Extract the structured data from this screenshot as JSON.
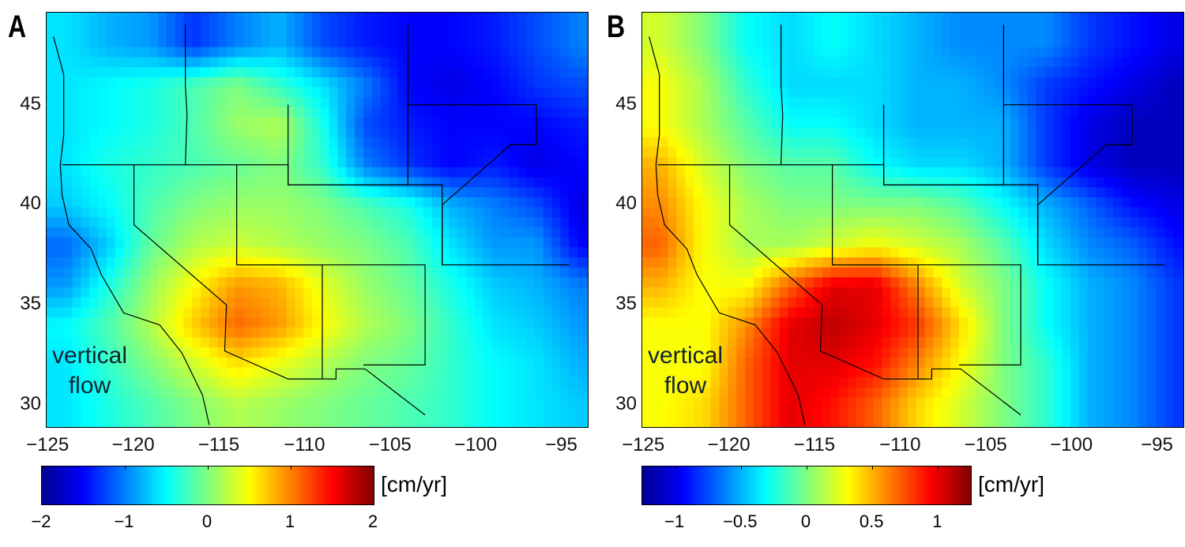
{
  "chart_data": [
    {
      "panel": "A",
      "type": "heatmap",
      "annotation": [
        "vertical",
        "flow"
      ],
      "xlim": [
        -125.1,
        -93.5
      ],
      "ylim": [
        28.9,
        49.6
      ],
      "xticks": [
        "−125",
        "−120",
        "−115",
        "−110",
        "−105",
        "−100",
        "−95"
      ],
      "xtick_values": [
        -125,
        -120,
        -115,
        -110,
        -105,
        -100,
        -95
      ],
      "yticks": [
        "45",
        "40",
        "35",
        "30"
      ],
      "ytick_values": [
        45,
        40,
        35,
        30
      ],
      "colormap": "jet",
      "color_range": [
        -2,
        2
      ],
      "colorbar_ticks": [
        "−2",
        "−1",
        "0",
        "1",
        "2"
      ],
      "colorbar_tick_values": [
        -2,
        -1,
        0,
        1,
        2
      ],
      "colorbar_label": "[cm/yr]",
      "grid_lon": [
        -124,
        -121.5,
        -119,
        -116.5,
        -114,
        -111.5,
        -109,
        -106.5,
        -104,
        -101.5,
        -99,
        -96.5,
        -94
      ],
      "grid_lat": [
        48,
        46,
        44,
        42,
        40,
        38,
        36,
        34,
        32,
        30
      ],
      "values": [
        [
          -0.6,
          -0.8,
          -0.9,
          -1.3,
          -1.0,
          -0.8,
          -1.2,
          -1.4,
          -1.5,
          -1.5,
          -1.4,
          -1.2,
          -1.0
        ],
        [
          -0.6,
          -0.5,
          -0.4,
          -0.2,
          0.0,
          -0.3,
          -0.6,
          -1.0,
          -1.5,
          -1.6,
          -1.5,
          -1.3,
          -1.2
        ],
        [
          -0.6,
          -0.5,
          -0.4,
          -0.2,
          0.1,
          0.2,
          -0.4,
          -1.2,
          -1.4,
          -1.5,
          -1.5,
          -1.5,
          -1.4
        ],
        [
          -0.6,
          -0.4,
          -0.3,
          -0.2,
          -0.1,
          0.0,
          -0.3,
          -1.0,
          -1.3,
          -1.5,
          -1.4,
          -1.6,
          -1.5
        ],
        [
          -0.7,
          -0.5,
          -0.2,
          0.0,
          0.1,
          0.1,
          0.0,
          -0.2,
          -0.4,
          -0.8,
          -1.0,
          -1.2,
          -1.6
        ],
        [
          -1.1,
          -0.7,
          -0.1,
          0.2,
          0.3,
          0.2,
          0.1,
          0.0,
          -0.2,
          -0.6,
          -0.9,
          -0.9,
          -1.5
        ],
        [
          -0.9,
          -0.4,
          0.1,
          0.5,
          0.9,
          0.8,
          0.4,
          0.1,
          -0.1,
          -0.4,
          -0.7,
          -0.8,
          -1.0
        ],
        [
          -0.5,
          -0.2,
          0.2,
          0.7,
          1.1,
          0.9,
          0.5,
          0.2,
          0.0,
          -0.3,
          -0.6,
          -0.7,
          -0.9
        ],
        [
          -0.6,
          -0.3,
          0.0,
          0.3,
          0.6,
          0.4,
          0.2,
          0.0,
          -0.1,
          -0.3,
          -0.5,
          -0.6,
          -0.8
        ],
        [
          -0.6,
          -0.4,
          -0.2,
          0.0,
          0.2,
          0.1,
          0.0,
          -0.1,
          -0.2,
          -0.3,
          -0.5,
          -0.6,
          -0.7
        ]
      ]
    },
    {
      "panel": "B",
      "type": "heatmap",
      "annotation": [
        "vertical",
        "flow"
      ],
      "xlim": [
        -125.1,
        -93.5
      ],
      "ylim": [
        28.9,
        49.6
      ],
      "xticks": [
        "−125",
        "−120",
        "−115",
        "−110",
        "−105",
        "−100",
        "−95"
      ],
      "xtick_values": [
        -125,
        -120,
        -115,
        -110,
        -105,
        -100,
        -95
      ],
      "yticks": [
        "45",
        "40",
        "35",
        "30"
      ],
      "ytick_values": [
        45,
        40,
        35,
        30
      ],
      "colormap": "jet",
      "color_range": [
        -1.25,
        1.25
      ],
      "colorbar_ticks": [
        "−1",
        "−0.5",
        "0",
        "0.5",
        "1"
      ],
      "colorbar_tick_values": [
        -1,
        -0.5,
        0,
        0.5,
        1
      ],
      "colorbar_label": "[cm/yr]",
      "grid_lon": [
        -124,
        -121.5,
        -119,
        -116.5,
        -114,
        -111.5,
        -109,
        -106.5,
        -104,
        -101.5,
        -99,
        -96.5,
        -94
      ],
      "grid_lat": [
        48,
        46,
        44,
        42,
        40,
        38,
        36,
        34,
        32,
        30
      ],
      "values": [
        [
          0.2,
          0.0,
          -0.3,
          -0.4,
          -0.3,
          -0.4,
          -0.5,
          -0.6,
          -0.6,
          -0.6,
          -0.8,
          -0.9,
          -1.0
        ],
        [
          0.3,
          0.1,
          -0.2,
          -0.4,
          -0.4,
          -0.4,
          -0.5,
          -0.5,
          -0.6,
          -0.8,
          -0.9,
          -1.0,
          -1.1
        ],
        [
          0.3,
          0.1,
          -0.1,
          -0.3,
          -0.3,
          -0.4,
          -0.5,
          -0.5,
          -0.5,
          -0.8,
          -1.0,
          -1.1,
          -1.1
        ],
        [
          0.5,
          0.2,
          0.0,
          -0.1,
          -0.1,
          -0.3,
          -0.4,
          -0.4,
          -0.5,
          -0.8,
          -1.0,
          -1.1,
          -1.1
        ],
        [
          0.6,
          0.3,
          0.1,
          0.0,
          0.0,
          0.0,
          0.0,
          -0.1,
          -0.3,
          -0.5,
          -0.7,
          -0.9,
          -1.0
        ],
        [
          0.7,
          0.3,
          0.1,
          0.1,
          0.2,
          0.3,
          0.2,
          0.1,
          -0.1,
          -0.4,
          -0.6,
          -0.7,
          -0.9
        ],
        [
          0.5,
          0.3,
          0.3,
          0.7,
          1.0,
          1.0,
          0.6,
          0.2,
          0.0,
          -0.3,
          -0.5,
          -0.6,
          -0.8
        ],
        [
          0.3,
          0.3,
          0.6,
          1.0,
          1.1,
          1.0,
          0.8,
          0.4,
          0.0,
          -0.3,
          -0.5,
          -0.6,
          -0.8
        ],
        [
          0.3,
          0.3,
          0.7,
          1.0,
          1.0,
          0.9,
          0.6,
          0.3,
          0.0,
          -0.2,
          -0.5,
          -0.6,
          -0.8
        ],
        [
          0.3,
          0.4,
          0.7,
          1.0,
          0.9,
          0.7,
          0.4,
          0.2,
          0.0,
          -0.2,
          -0.5,
          -0.6,
          -0.8
        ]
      ]
    }
  ]
}
